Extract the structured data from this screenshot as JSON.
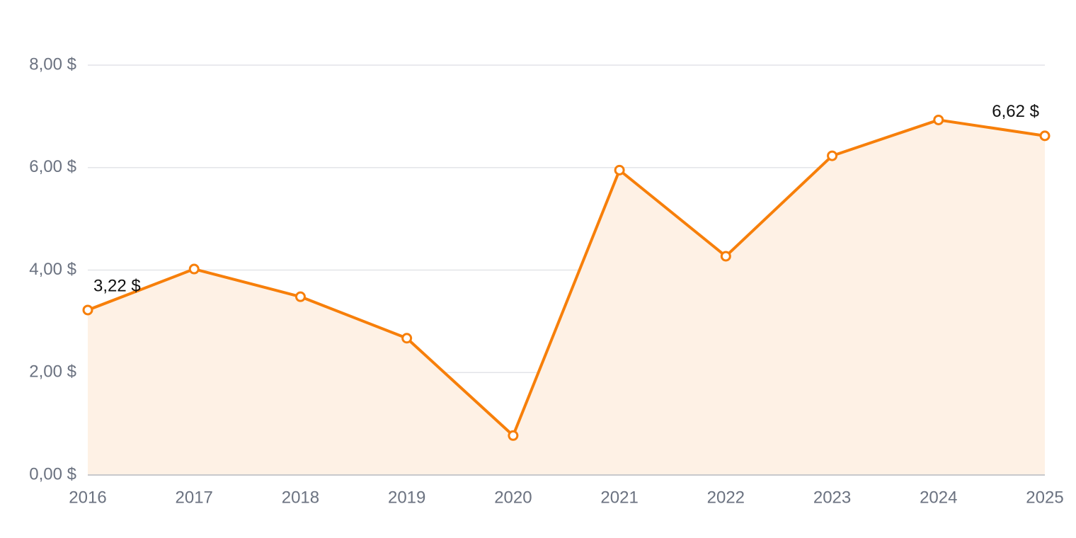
{
  "chart_data": {
    "type": "area",
    "categories": [
      "2016",
      "2017",
      "2018",
      "2019",
      "2020",
      "2021",
      "2022",
      "2023",
      "2024",
      "2025"
    ],
    "values": [
      3.22,
      4.02,
      3.48,
      2.67,
      0.77,
      5.95,
      4.27,
      6.23,
      6.93,
      6.62
    ],
    "value_labels": [
      "3,22 $",
      null,
      null,
      null,
      null,
      null,
      null,
      null,
      null,
      "6,62 $"
    ],
    "color": "#f77f0a",
    "area_color": "#fef1e5",
    "ylim": [
      0,
      8
    ],
    "yticks": [
      {
        "value": 0,
        "label": "0,00 $"
      },
      {
        "value": 2,
        "label": "2,00 $"
      },
      {
        "value": 4,
        "label": "4,00 $"
      },
      {
        "value": 6,
        "label": "6,00 $"
      },
      {
        "value": 8,
        "label": "8,00 $"
      }
    ],
    "grid": true
  }
}
